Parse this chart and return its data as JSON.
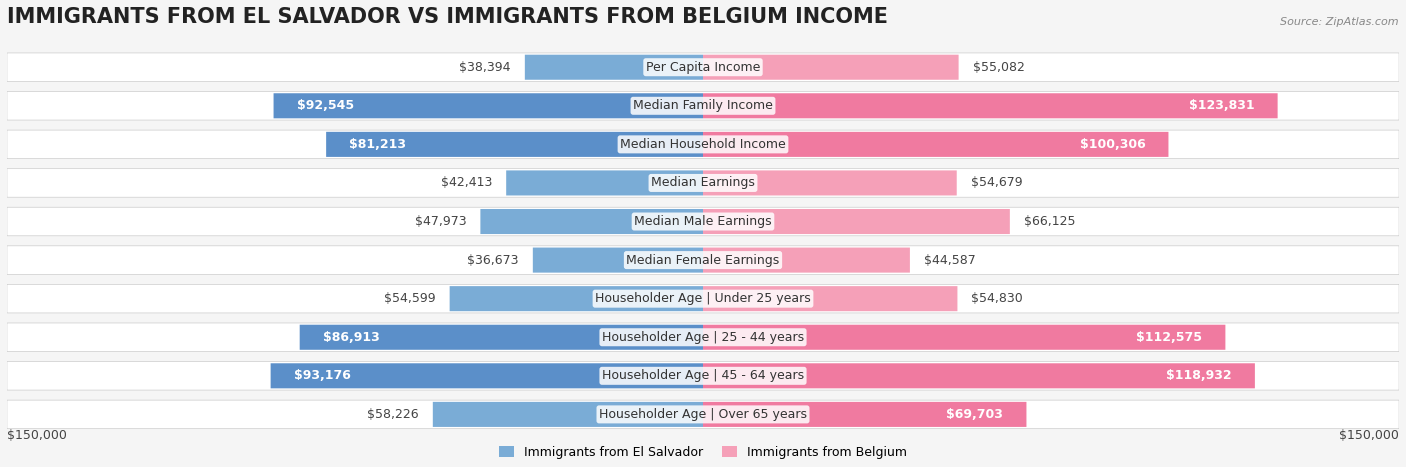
{
  "title": "IMMIGRANTS FROM EL SALVADOR VS IMMIGRANTS FROM BELGIUM INCOME",
  "source": "Source: ZipAtlas.com",
  "categories": [
    "Per Capita Income",
    "Median Family Income",
    "Median Household Income",
    "Median Earnings",
    "Median Male Earnings",
    "Median Female Earnings",
    "Householder Age | Under 25 years",
    "Householder Age | 25 - 44 years",
    "Householder Age | 45 - 64 years",
    "Householder Age | Over 65 years"
  ],
  "el_salvador_values": [
    38394,
    92545,
    81213,
    42413,
    47973,
    36673,
    54599,
    86913,
    93176,
    58226
  ],
  "belgium_values": [
    55082,
    123831,
    100306,
    54679,
    66125,
    44587,
    54830,
    112575,
    118932,
    69703
  ],
  "el_salvador_labels": [
    "$38,394",
    "$92,545",
    "$81,213",
    "$42,413",
    "$47,973",
    "$36,673",
    "$54,599",
    "$86,913",
    "$93,176",
    "$58,226"
  ],
  "belgium_labels": [
    "$55,082",
    "$123,831",
    "$100,306",
    "$54,679",
    "$66,125",
    "$44,587",
    "$54,830",
    "$112,575",
    "$118,932",
    "$69,703"
  ],
  "el_salvador_color": "#7aacd6",
  "el_salvador_color_dark": "#5b8fc9",
  "belgium_color": "#f5a0b8",
  "belgium_color_dark": "#f07aa0",
  "max_value": 150000,
  "x_label_left": "$150,000",
  "x_label_right": "$150,000",
  "legend_label_1": "Immigrants from El Salvador",
  "legend_label_2": "Immigrants from Belgium",
  "background_color": "#f5f5f5",
  "row_bg_color": "#ffffff",
  "title_fontsize": 15,
  "label_fontsize": 9,
  "category_fontsize": 9
}
